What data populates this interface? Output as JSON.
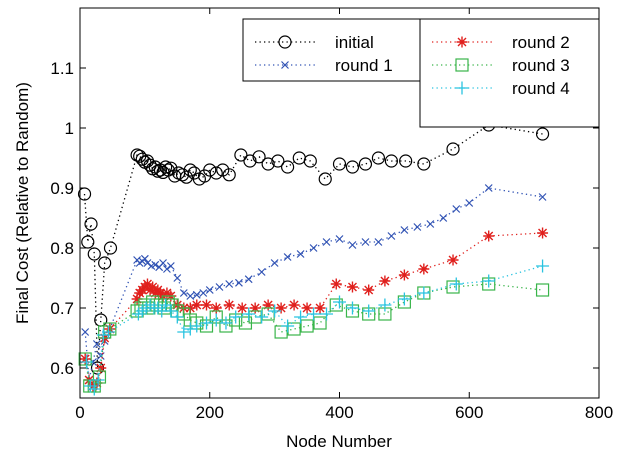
{
  "chart_data": {
    "type": "scatter",
    "xlabel": "Node Number",
    "ylabel": "Final Cost (Relative to Random)",
    "xlim": [
      0,
      800
    ],
    "ylim": [
      0.55,
      1.2
    ],
    "x_ticks": [
      0,
      200,
      400,
      600,
      800
    ],
    "x_tick_labels": [
      "0",
      "200",
      "400",
      "600",
      "800"
    ],
    "y_ticks": [
      0.6,
      0.7,
      0.8,
      0.9,
      1.0,
      1.1
    ],
    "y_tick_labels": [
      "0.6",
      "0.7",
      "0.8",
      "0.9",
      "1",
      "1.1"
    ],
    "grid": false,
    "legend_placement": "top-right, two boxes",
    "series": [
      {
        "name": "initial",
        "marker": "circle",
        "color": "#000000",
        "legend_group": 0,
        "x": [
          7,
          12,
          17,
          22,
          27,
          32,
          38,
          47,
          88,
          92,
          96,
          100,
          104,
          108,
          112,
          116,
          120,
          124,
          128,
          132,
          136,
          140,
          146,
          152,
          158,
          164,
          170,
          176,
          184,
          192,
          200,
          210,
          220,
          230,
          248,
          262,
          276,
          290,
          305,
          320,
          338,
          355,
          378,
          400,
          420,
          440,
          460,
          480,
          502,
          530,
          575,
          630,
          713
        ],
        "y": [
          0.89,
          0.81,
          0.84,
          0.79,
          0.6,
          0.68,
          0.775,
          0.8,
          0.955,
          0.953,
          0.948,
          0.943,
          0.945,
          0.938,
          0.932,
          0.935,
          0.928,
          0.93,
          0.926,
          0.935,
          0.93,
          0.933,
          0.92,
          0.925,
          0.922,
          0.918,
          0.93,
          0.925,
          0.915,
          0.92,
          0.93,
          0.925,
          0.93,
          0.922,
          0.955,
          0.945,
          0.952,
          0.94,
          0.945,
          0.935,
          0.95,
          0.945,
          0.915,
          0.94,
          0.935,
          0.94,
          0.95,
          0.945,
          0.945,
          0.94,
          0.965,
          1.005,
          0.99
        ]
      },
      {
        "name": "round 1",
        "marker": "x",
        "color": "#3153b4",
        "legend_group": 0,
        "x": [
          8,
          14,
          20,
          26,
          32,
          38,
          46,
          88,
          92,
          96,
          100,
          104,
          110,
          116,
          122,
          128,
          134,
          140,
          150,
          160,
          170,
          180,
          190,
          200,
          215,
          230,
          245,
          260,
          280,
          300,
          320,
          340,
          360,
          380,
          400,
          420,
          440,
          460,
          480,
          500,
          520,
          540,
          560,
          580,
          600,
          630,
          713
        ],
        "y": [
          0.66,
          0.58,
          0.61,
          0.64,
          0.62,
          0.645,
          0.665,
          0.78,
          0.775,
          0.778,
          0.782,
          0.775,
          0.77,
          0.772,
          0.768,
          0.775,
          0.765,
          0.77,
          0.75,
          0.725,
          0.72,
          0.722,
          0.725,
          0.73,
          0.735,
          0.74,
          0.742,
          0.748,
          0.76,
          0.775,
          0.785,
          0.79,
          0.8,
          0.81,
          0.815,
          0.805,
          0.81,
          0.81,
          0.82,
          0.83,
          0.835,
          0.84,
          0.85,
          0.865,
          0.875,
          0.9,
          0.885
        ]
      },
      {
        "name": "round 2",
        "marker": "star",
        "color": "#e0201d",
        "legend_group": 1,
        "x": [
          8,
          14,
          20,
          26,
          32,
          38,
          46,
          88,
          92,
          96,
          100,
          104,
          108,
          112,
          116,
          120,
          124,
          128,
          134,
          140,
          150,
          160,
          170,
          180,
          195,
          210,
          230,
          250,
          270,
          290,
          310,
          330,
          350,
          370,
          395,
          420,
          445,
          470,
          500,
          530,
          575,
          630,
          713
        ],
        "y": [
          0.615,
          0.58,
          0.57,
          0.575,
          0.6,
          0.65,
          0.665,
          0.715,
          0.725,
          0.73,
          0.735,
          0.74,
          0.73,
          0.735,
          0.725,
          0.73,
          0.725,
          0.72,
          0.725,
          0.72,
          0.705,
          0.7,
          0.7,
          0.705,
          0.705,
          0.7,
          0.705,
          0.7,
          0.7,
          0.705,
          0.7,
          0.705,
          0.7,
          0.7,
          0.74,
          0.735,
          0.73,
          0.745,
          0.755,
          0.765,
          0.78,
          0.82,
          0.825
        ]
      },
      {
        "name": "round 3",
        "marker": "square",
        "color": "#39b54a",
        "legend_group": 1,
        "x": [
          8,
          15,
          22,
          30,
          38,
          46,
          88,
          94,
          100,
          106,
          112,
          118,
          124,
          130,
          136,
          142,
          150,
          160,
          170,
          180,
          195,
          210,
          225,
          240,
          255,
          270,
          290,
          310,
          330,
          350,
          370,
          395,
          420,
          445,
          470,
          500,
          530,
          575,
          630,
          713
        ],
        "y": [
          0.615,
          0.57,
          0.57,
          0.585,
          0.66,
          0.665,
          0.695,
          0.7,
          0.705,
          0.7,
          0.71,
          0.705,
          0.705,
          0.7,
          0.71,
          0.705,
          0.695,
          0.69,
          0.68,
          0.675,
          0.67,
          0.685,
          0.67,
          0.68,
          0.675,
          0.685,
          0.69,
          0.66,
          0.665,
          0.67,
          0.675,
          0.705,
          0.695,
          0.69,
          0.69,
          0.71,
          0.725,
          0.735,
          0.74,
          0.73
        ]
      },
      {
        "name": "round 4",
        "marker": "plus",
        "color": "#29c3e0",
        "legend_group": 1,
        "x": [
          10,
          16,
          22,
          28,
          36,
          44,
          90,
          96,
          102,
          108,
          114,
          120,
          126,
          132,
          140,
          150,
          160,
          170,
          180,
          195,
          210,
          225,
          240,
          260,
          280,
          300,
          320,
          340,
          360,
          380,
          400,
          420,
          445,
          470,
          500,
          530,
          580,
          630,
          713
        ],
        "y": [
          0.61,
          0.57,
          0.565,
          0.58,
          0.655,
          0.66,
          0.69,
          0.695,
          0.7,
          0.705,
          0.7,
          0.7,
          0.695,
          0.705,
          0.695,
          0.685,
          0.66,
          0.665,
          0.67,
          0.675,
          0.68,
          0.675,
          0.685,
          0.69,
          0.685,
          0.695,
          0.67,
          0.685,
          0.69,
          0.69,
          0.71,
          0.7,
          0.695,
          0.705,
          0.715,
          0.725,
          0.74,
          0.745,
          0.77
        ]
      }
    ]
  }
}
